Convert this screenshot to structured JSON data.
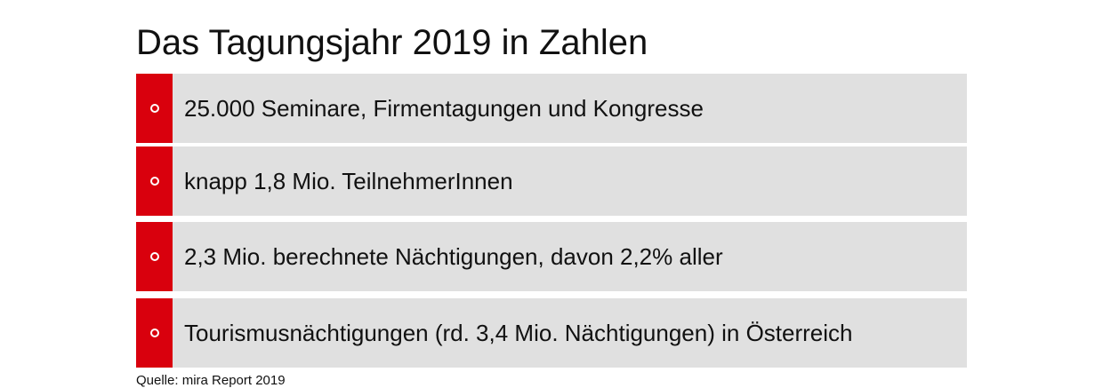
{
  "title": "Das Tagungsjahr 2019 in Zahlen",
  "items": [
    "25.000 Seminare, Firmentagungen und Kongresse",
    "knapp 1,8 Mio. TeilnehmerInnen",
    "2,3 Mio. berechnete Nächtigungen, davon 2,2% aller",
    "Tourismusnächtigungen (rd. 3,4 Mio. Nächtigungen) in Österreich"
  ],
  "source": "Quelle: mira Report 2019"
}
